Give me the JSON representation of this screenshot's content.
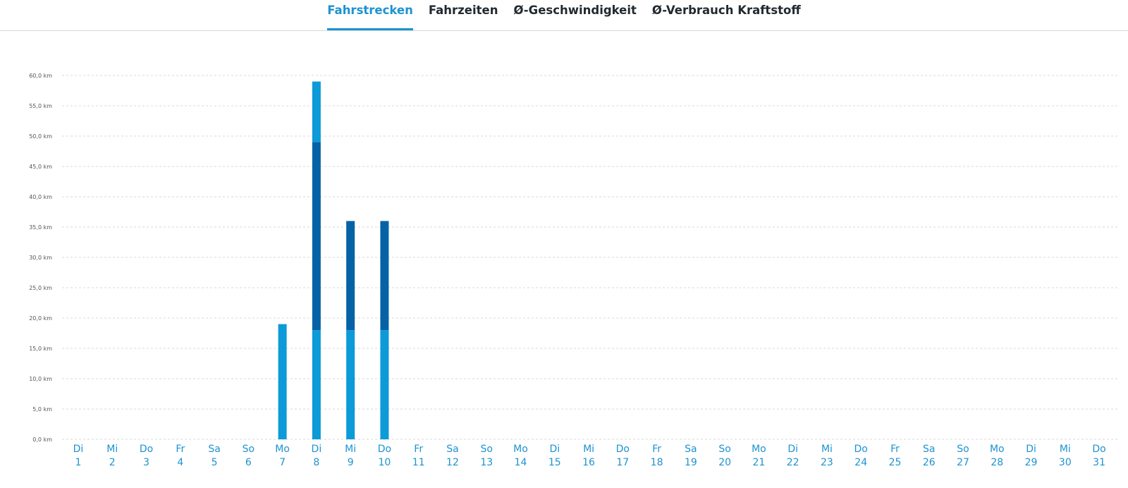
{
  "tabs": [
    {
      "label": "Fahrstrecken",
      "active": true
    },
    {
      "label": "Fahrzeiten",
      "active": false
    },
    {
      "label": "Ø-Geschwindigkeit",
      "active": false
    },
    {
      "label": "Ø-Verbrauch Kraftstoff",
      "active": false
    }
  ],
  "colors": {
    "accent": "#1d93d0",
    "bar_light": "#0c9ad8",
    "bar_dark": "#0562a6",
    "axis_text": "#1d93d0",
    "ytick_text": "#555555",
    "grid": "#d8dadc"
  },
  "chart_data": {
    "type": "bar",
    "stacked": true,
    "ylim": [
      0,
      60
    ],
    "ytick_labels": [
      "0,0 km",
      "5,0 km",
      "10,0 km",
      "15,0 km",
      "20,0 km",
      "25,0 km",
      "30,0 km",
      "35,0 km",
      "40,0 km",
      "45,0 km",
      "50,0 km",
      "55,0 km",
      "60,0 km"
    ],
    "grid": true,
    "categories": [
      {
        "day": "Di",
        "date": "1"
      },
      {
        "day": "Mi",
        "date": "2"
      },
      {
        "day": "Do",
        "date": "3"
      },
      {
        "day": "Fr",
        "date": "4"
      },
      {
        "day": "Sa",
        "date": "5"
      },
      {
        "day": "So",
        "date": "6"
      },
      {
        "day": "Mo",
        "date": "7"
      },
      {
        "day": "Di",
        "date": "8"
      },
      {
        "day": "Mi",
        "date": "9"
      },
      {
        "day": "Do",
        "date": "10"
      },
      {
        "day": "Fr",
        "date": "11"
      },
      {
        "day": "Sa",
        "date": "12"
      },
      {
        "day": "So",
        "date": "13"
      },
      {
        "day": "Mo",
        "date": "14"
      },
      {
        "day": "Di",
        "date": "15"
      },
      {
        "day": "Mi",
        "date": "16"
      },
      {
        "day": "Do",
        "date": "17"
      },
      {
        "day": "Fr",
        "date": "18"
      },
      {
        "day": "Sa",
        "date": "19"
      },
      {
        "day": "So",
        "date": "20"
      },
      {
        "day": "Mo",
        "date": "21"
      },
      {
        "day": "Di",
        "date": "22"
      },
      {
        "day": "Mi",
        "date": "23"
      },
      {
        "day": "Do",
        "date": "24"
      },
      {
        "day": "Fr",
        "date": "25"
      },
      {
        "day": "Sa",
        "date": "26"
      },
      {
        "day": "So",
        "date": "27"
      },
      {
        "day": "Mo",
        "date": "28"
      },
      {
        "day": "Di",
        "date": "29"
      },
      {
        "day": "Mi",
        "date": "30"
      },
      {
        "day": "Do",
        "date": "31"
      }
    ],
    "series": [
      {
        "color": "#0c9ad8",
        "values": [
          0,
          0,
          0,
          0,
          0,
          0,
          19,
          18,
          18,
          18,
          0,
          0,
          0,
          0,
          0,
          0,
          0,
          0,
          0,
          0,
          0,
          0,
          0,
          0,
          0,
          0,
          0,
          0,
          0,
          0,
          0
        ]
      },
      {
        "color": "#0562a6",
        "values": [
          0,
          0,
          0,
          0,
          0,
          0,
          0,
          31,
          18,
          18,
          0,
          0,
          0,
          0,
          0,
          0,
          0,
          0,
          0,
          0,
          0,
          0,
          0,
          0,
          0,
          0,
          0,
          0,
          0,
          0,
          0
        ]
      },
      {
        "color": "#0c9ad8",
        "values": [
          0,
          0,
          0,
          0,
          0,
          0,
          0,
          10,
          0,
          0,
          0,
          0,
          0,
          0,
          0,
          0,
          0,
          0,
          0,
          0,
          0,
          0,
          0,
          0,
          0,
          0,
          0,
          0,
          0,
          0,
          0
        ]
      }
    ]
  }
}
